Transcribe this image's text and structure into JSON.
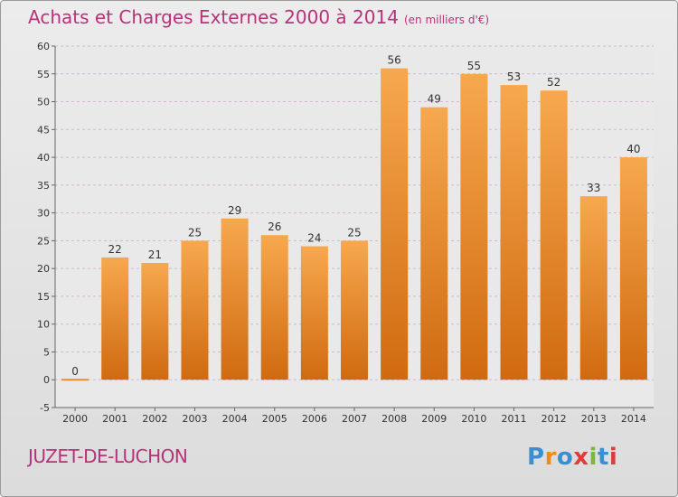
{
  "header": {
    "title": "Achats et Charges Externes 2000 à 2014",
    "unit": "(en milliers d'€)"
  },
  "footer": {
    "commune": "JUZET-DE-LUCHON",
    "logo": "Proxiti"
  },
  "colors": {
    "bar_light": "#f7a84e",
    "bar_dark": "#d06a10",
    "title": "#b8327a",
    "grid": "#d3b6d2"
  },
  "chart_data": {
    "type": "bar",
    "title": "Achats et Charges Externes 2000 à 2014",
    "subtitle": "(en milliers d'€)",
    "categories": [
      "2000",
      "2001",
      "2002",
      "2003",
      "2004",
      "2005",
      "2006",
      "2007",
      "2008",
      "2009",
      "2010",
      "2011",
      "2012",
      "2013",
      "2014"
    ],
    "values": [
      0,
      22,
      21,
      25,
      29,
      26,
      24,
      25,
      56,
      49,
      55,
      53,
      52,
      33,
      40
    ],
    "ylim": [
      -5,
      60
    ],
    "yticks": [
      -5,
      0,
      5,
      10,
      15,
      20,
      25,
      30,
      35,
      40,
      45,
      50,
      55,
      60
    ],
    "xlabel": "",
    "ylabel": "",
    "grid": true,
    "data_labels": true
  }
}
